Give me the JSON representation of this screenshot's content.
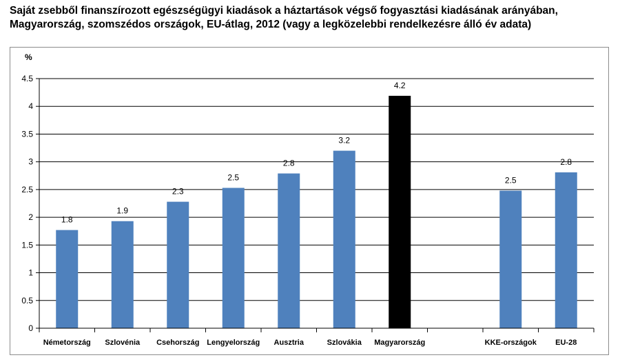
{
  "header": {
    "title_line1": "Saját zsebből finanszírozott egészségügyi kiadások a háztartások végső fogyasztási kiadásának arányában,",
    "title_line2": "Magyarország, szomszédos országok, EU-átlag, 2012 (vagy a legközelebbi rendelkezésre álló év adata)"
  },
  "chart_data": {
    "type": "bar",
    "title": "Saját zsebből finanszírozott egészségügyi kiadások a háztartások végső fogyasztási kiadásának arányában, Magyarország, szomszédos országok, EU-átlag, 2012 (vagy a legközelebbi rendelkezésre álló év adata)",
    "ylabel": "%",
    "xlabel": "",
    "ylim": [
      0,
      4.5
    ],
    "yticks": [
      "0",
      "0.5",
      "1",
      "1.5",
      "2",
      "2.5",
      "3",
      "3.5",
      "4",
      "4.5"
    ],
    "grid": true,
    "categories": [
      "Németország",
      "Szlovénia",
      "Csehország",
      "Lengyelország",
      "Ausztria",
      "Szlovákia",
      "Magyarország",
      "",
      "KKE-országok",
      "EU-28"
    ],
    "values": [
      1.77,
      1.93,
      2.28,
      2.53,
      2.79,
      3.2,
      4.19,
      null,
      2.48,
      2.81
    ],
    "data_labels": [
      "1.8",
      "1.9",
      "2.3",
      "2.5",
      "2.8",
      "3.2",
      "4.2",
      "",
      "2.5",
      "2.8"
    ],
    "colors": {
      "default": "#4f81bd",
      "highlight": "#000000",
      "highlight_category": "Magyarország",
      "grid": "#000000",
      "axis": "#000000"
    }
  }
}
